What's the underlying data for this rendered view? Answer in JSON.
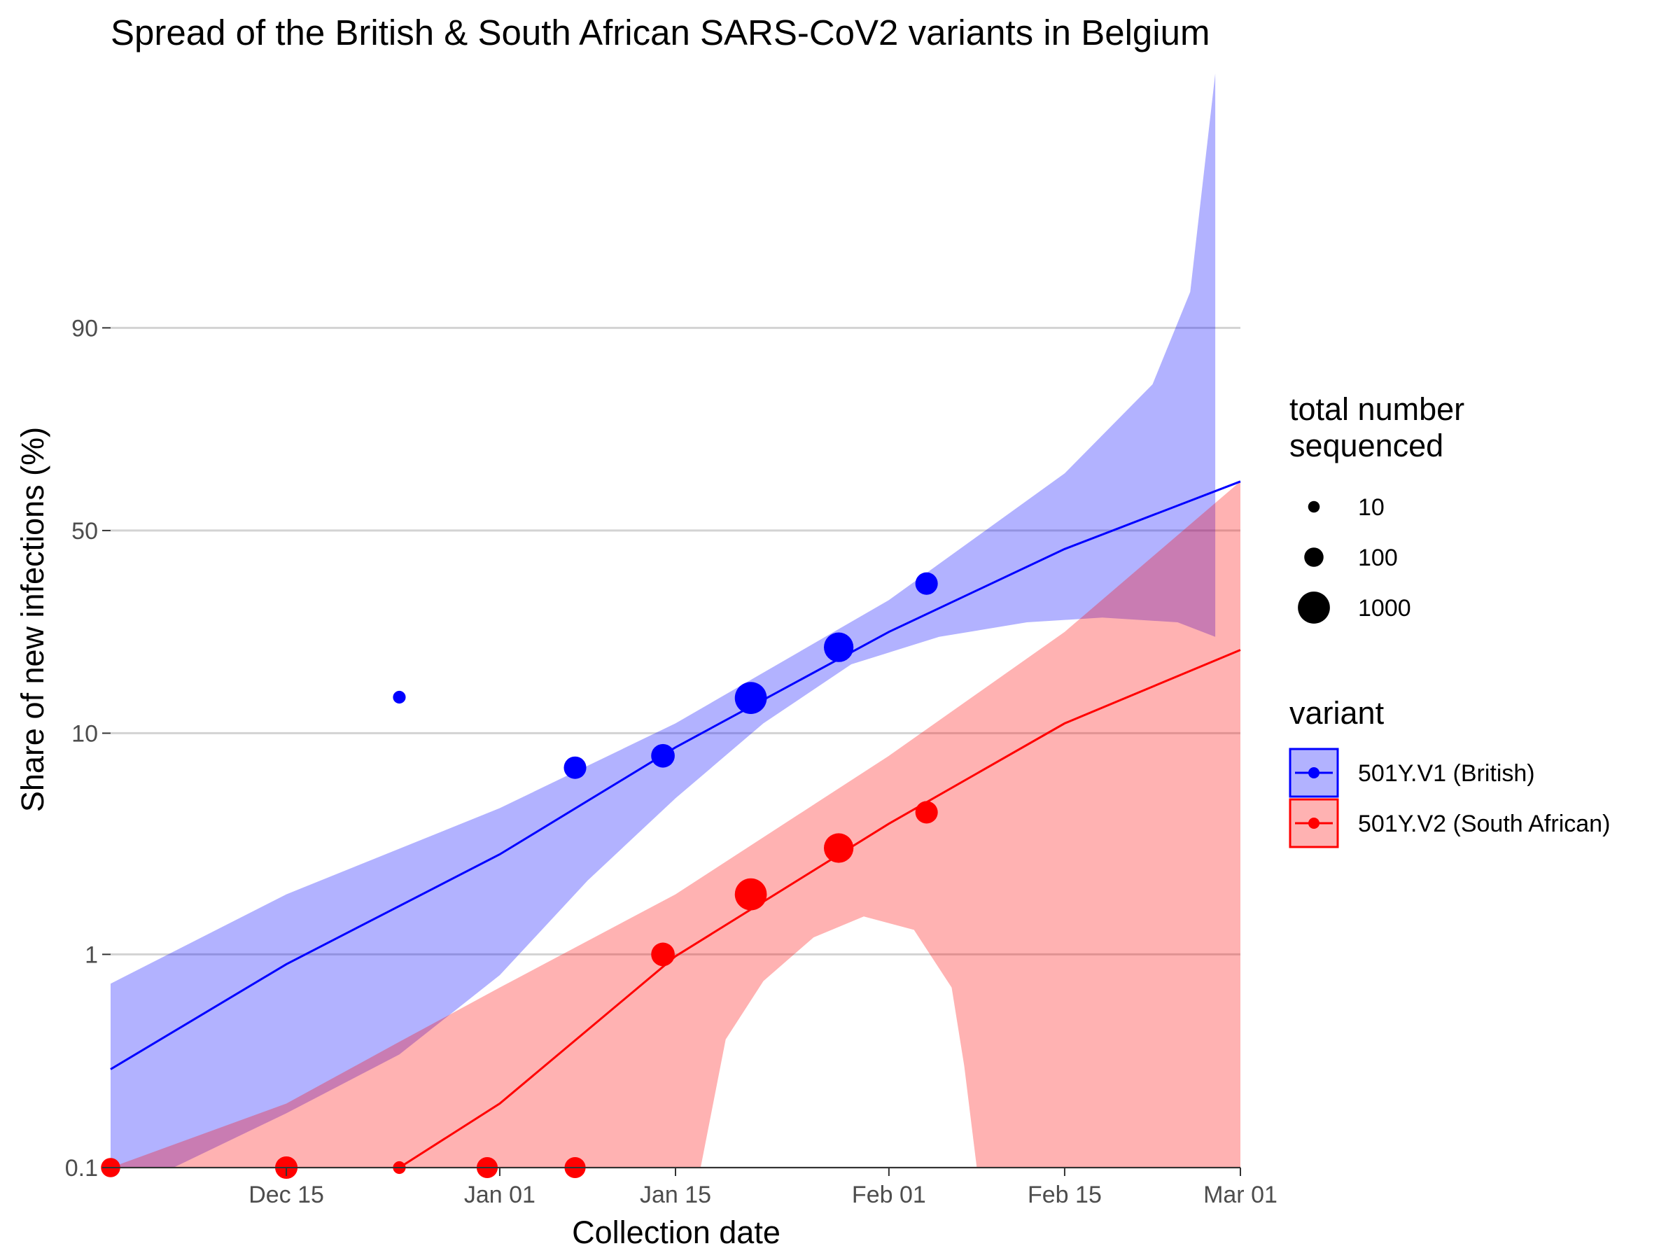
{
  "chart_data": {
    "type": "line",
    "title": "Spread of the British & South African SARS-CoV2 variants in Belgium",
    "xlabel": "Collection date",
    "ylabel": "Share of new infections (%)",
    "y_scale": "logit",
    "ylim": [
      0.1,
      99.3
    ],
    "xlim": [
      "2020-12-01",
      "2021-03-01"
    ],
    "x_ticks": [
      {
        "date": "2020-12-15",
        "label": "Dec 15"
      },
      {
        "date": "2021-01-01",
        "label": "Jan 01"
      },
      {
        "date": "2021-01-15",
        "label": "Jan 15"
      },
      {
        "date": "2021-02-01",
        "label": "Feb 01"
      },
      {
        "date": "2021-02-15",
        "label": "Feb 15"
      },
      {
        "date": "2021-03-01",
        "label": "Mar 01"
      }
    ],
    "y_ticks": [
      {
        "value": 0.1,
        "label": "0.1"
      },
      {
        "value": 1,
        "label": "1"
      },
      {
        "value": 10,
        "label": "10"
      },
      {
        "value": 50,
        "label": "50"
      },
      {
        "value": 90,
        "label": "90"
      }
    ],
    "grid": true,
    "legend_position": "right",
    "size_legend": {
      "title_lines": [
        "total number",
        "sequenced"
      ],
      "entries": [
        {
          "label": "10",
          "n": 10
        },
        {
          "label": "100",
          "n": 100
        },
        {
          "label": "1000",
          "n": 1000
        }
      ]
    },
    "color_legend": {
      "title": "variant"
    },
    "series": [
      {
        "name": "501Y.V1 (British)",
        "color": "#0000ff",
        "fill": "#b2b2fb",
        "points": [
          {
            "x": "2020-12-24",
            "y": 14.1,
            "n": 15
          },
          {
            "x": "2021-01-07",
            "y": 7.1,
            "n": 200
          },
          {
            "x": "2021-01-14",
            "y": 8.0,
            "n": 250
          },
          {
            "x": "2021-01-21",
            "y": 14.0,
            "n": 1000
          },
          {
            "x": "2021-01-28",
            "y": 22.0,
            "n": 700
          },
          {
            "x": "2021-02-04",
            "y": 36.0,
            "n": 200
          }
        ],
        "fit": [
          {
            "x": "2020-12-01",
            "y": 0.29
          },
          {
            "x": "2020-12-15",
            "y": 0.9
          },
          {
            "x": "2021-01-01",
            "y": 2.9
          },
          {
            "x": "2021-01-15",
            "y": 8.7
          },
          {
            "x": "2021-02-01",
            "y": 25.0
          },
          {
            "x": "2021-02-15",
            "y": 45.0
          },
          {
            "x": "2021-03-01",
            "y": 63.0
          }
        ],
        "ci_lower": [
          {
            "x": "2020-12-01",
            "y": 0.0
          },
          {
            "x": "2020-12-06",
            "y": 0.1
          },
          {
            "x": "2020-12-15",
            "y": 0.18
          },
          {
            "x": "2020-12-24",
            "y": 0.34
          },
          {
            "x": "2021-01-01",
            "y": 0.8
          },
          {
            "x": "2021-01-08",
            "y": 2.2
          },
          {
            "x": "2021-01-15",
            "y": 5.2
          },
          {
            "x": "2021-01-22",
            "y": 11.0
          },
          {
            "x": "2021-01-29",
            "y": 19.0
          },
          {
            "x": "2021-02-05",
            "y": 24.0
          },
          {
            "x": "2021-02-12",
            "y": 27.0
          },
          {
            "x": "2021-02-18",
            "y": 28.0
          },
          {
            "x": "2021-02-24",
            "y": 27.0
          },
          {
            "x": "2021-02-27",
            "y": 24.0
          }
        ],
        "ci_upper": [
          {
            "x": "2020-12-01",
            "y": 0.73
          },
          {
            "x": "2020-12-15",
            "y": 1.9
          },
          {
            "x": "2021-01-01",
            "y": 4.7
          },
          {
            "x": "2021-01-15",
            "y": 11.0
          },
          {
            "x": "2021-02-01",
            "y": 32.0
          },
          {
            "x": "2021-02-15",
            "y": 65.0
          },
          {
            "x": "2021-02-22",
            "y": 83.0
          },
          {
            "x": "2021-02-25",
            "y": 93.0
          },
          {
            "x": "2021-02-27",
            "y": 99.3
          }
        ]
      },
      {
        "name": "501Y.V2 (South African)",
        "color": "#ff0000",
        "fill": "#ffb3b3",
        "points": [
          {
            "x": "2020-12-01",
            "y": 0.1,
            "n": 100
          },
          {
            "x": "2020-12-15",
            "y": 0.1,
            "n": 200
          },
          {
            "x": "2020-12-24",
            "y": 0.1,
            "n": 15
          },
          {
            "x": "2020-12-31",
            "y": 0.1,
            "n": 150
          },
          {
            "x": "2021-01-07",
            "y": 0.1,
            "n": 150
          },
          {
            "x": "2021-01-14",
            "y": 1.0,
            "n": 250
          },
          {
            "x": "2021-01-21",
            "y": 1.9,
            "n": 1000
          },
          {
            "x": "2021-01-28",
            "y": 3.1,
            "n": 700
          },
          {
            "x": "2021-02-04",
            "y": 4.5,
            "n": 200
          }
        ],
        "fit": [
          {
            "x": "2020-12-24",
            "y": 0.1
          },
          {
            "x": "2021-01-01",
            "y": 0.2
          },
          {
            "x": "2021-01-15",
            "y": 0.98
          },
          {
            "x": "2021-02-01",
            "y": 4.0
          },
          {
            "x": "2021-02-15",
            "y": 11.0
          },
          {
            "x": "2021-03-01",
            "y": 21.5
          }
        ],
        "ci_lower": [
          {
            "x": "2021-01-17",
            "y": 0.1
          },
          {
            "x": "2021-01-19",
            "y": 0.4
          },
          {
            "x": "2021-01-22",
            "y": 0.75
          },
          {
            "x": "2021-01-26",
            "y": 1.2
          },
          {
            "x": "2021-01-30",
            "y": 1.5
          },
          {
            "x": "2021-02-03",
            "y": 1.3
          },
          {
            "x": "2021-02-06",
            "y": 0.7
          },
          {
            "x": "2021-02-07",
            "y": 0.3
          },
          {
            "x": "2021-02-08",
            "y": 0.1
          }
        ],
        "ci_upper": [
          {
            "x": "2020-12-01",
            "y": 0.1
          },
          {
            "x": "2020-12-15",
            "y": 0.2
          },
          {
            "x": "2020-12-24",
            "y": 0.39
          },
          {
            "x": "2021-01-01",
            "y": 0.7
          },
          {
            "x": "2021-01-15",
            "y": 1.9
          },
          {
            "x": "2021-02-01",
            "y": 8.0
          },
          {
            "x": "2021-02-15",
            "y": 25.0
          },
          {
            "x": "2021-03-01",
            "y": 63.0
          }
        ]
      }
    ]
  }
}
